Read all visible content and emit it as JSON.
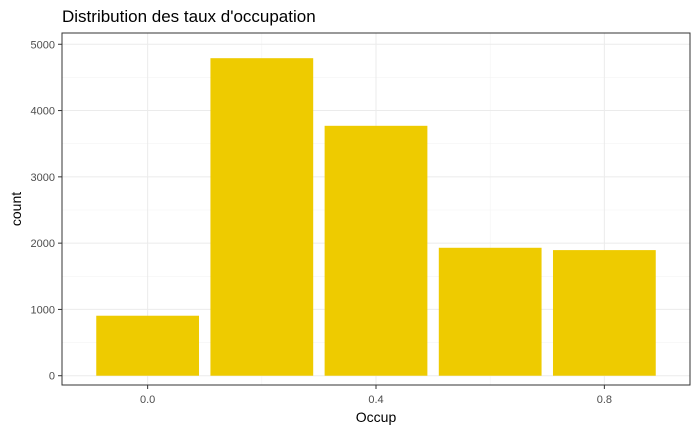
{
  "chart_data": {
    "type": "bar",
    "title": "Distribution des taux d'occupation",
    "xlabel": "Occup",
    "ylabel": "count",
    "bin_width": 0.2,
    "x": [
      0.0,
      0.2,
      0.4,
      0.6,
      0.8
    ],
    "values": [
      905,
      4790,
      3770,
      1930,
      1895
    ],
    "xlim": [
      -0.15,
      0.95
    ],
    "ylim": [
      -140,
      5170
    ],
    "x_ticks": [
      0.0,
      0.4,
      0.8
    ],
    "x_tick_labels": [
      "0.0",
      "0.4",
      "0.8"
    ],
    "y_ticks": [
      0,
      1000,
      2000,
      3000,
      4000,
      5000
    ],
    "y_tick_labels": [
      "0",
      "1000",
      "2000",
      "3000",
      "4000",
      "5000"
    ],
    "bar_color": "#EECB00",
    "grid": true,
    "legend": "none"
  }
}
